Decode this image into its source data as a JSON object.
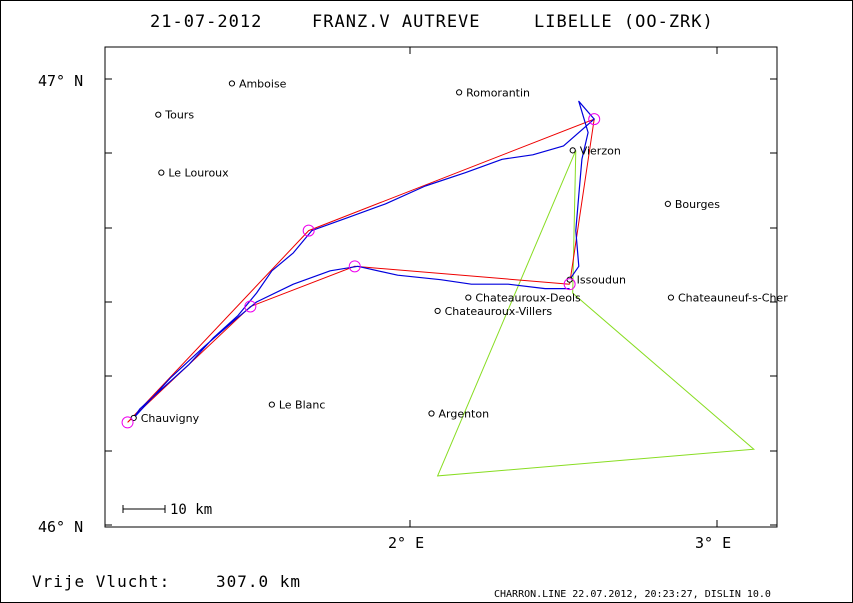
{
  "header": {
    "date": "21-07-2012",
    "pilot": "FRANZ.V AUTREVE",
    "aircraft": "LIBELLE (OO-ZRK)"
  },
  "axes": {
    "lat_top": "47° N",
    "lat_bottom": "46° N",
    "lon_1": "2° E",
    "lon_2": "3° E"
  },
  "scale_bar": {
    "label": "10 km"
  },
  "towns": [
    {
      "name": "Amboise",
      "lon": 1.42,
      "lat": 46.99
    },
    {
      "name": "Romorantin",
      "lon": 2.16,
      "lat": 46.97
    },
    {
      "name": "Tours",
      "lon": 1.18,
      "lat": 46.92
    },
    {
      "name": "Vierzon",
      "lon": 2.53,
      "lat": 46.84
    },
    {
      "name": "Le Louroux",
      "lon": 1.19,
      "lat": 46.79
    },
    {
      "name": "Bourges",
      "lon": 2.84,
      "lat": 46.72
    },
    {
      "name": "Issoudun",
      "lon": 2.52,
      "lat": 46.55
    },
    {
      "name": "Chateauroux-Deols",
      "lon": 2.19,
      "lat": 46.51
    },
    {
      "name": "Chateauneuf-s-Cher",
      "lon": 2.85,
      "lat": 46.51
    },
    {
      "name": "Chateauroux-Villers",
      "lon": 2.09,
      "lat": 46.48
    },
    {
      "name": "Le Blanc",
      "lon": 1.55,
      "lat": 46.27
    },
    {
      "name": "Argenton",
      "lon": 2.07,
      "lat": 46.25
    },
    {
      "name": "Chauvigny",
      "lon": 1.1,
      "lat": 46.24
    }
  ],
  "turnpoints": [
    {
      "lon": 2.6,
      "lat": 46.91
    },
    {
      "lon": 1.67,
      "lat": 46.66
    },
    {
      "lon": 1.82,
      "lat": 46.58
    },
    {
      "lon": 1.48,
      "lat": 46.49
    },
    {
      "lon": 1.08,
      "lat": 46.23
    },
    {
      "lon": 2.52,
      "lat": 46.54
    }
  ],
  "task_route": [
    {
      "lon": 2.52,
      "lat": 46.54
    },
    {
      "lon": 1.82,
      "lat": 46.58
    },
    {
      "lon": 1.48,
      "lat": 46.49
    },
    {
      "lon": 1.08,
      "lat": 46.23
    },
    {
      "lon": 1.67,
      "lat": 46.66
    },
    {
      "lon": 2.6,
      "lat": 46.91
    },
    {
      "lon": 2.52,
      "lat": 46.54
    }
  ],
  "fai_triangle": [
    {
      "lon": 2.54,
      "lat": 46.84
    },
    {
      "lon": 2.53,
      "lat": 46.52
    },
    {
      "lon": 3.12,
      "lat": 46.17
    },
    {
      "lon": 2.09,
      "lat": 46.11
    },
    {
      "lon": 2.54,
      "lat": 46.84
    }
  ],
  "flight_track": [
    {
      "lon": 2.52,
      "lat": 46.55
    },
    {
      "lon": 2.55,
      "lat": 46.58
    },
    {
      "lon": 2.54,
      "lat": 46.66
    },
    {
      "lon": 2.55,
      "lat": 46.74
    },
    {
      "lon": 2.56,
      "lat": 46.82
    },
    {
      "lon": 2.58,
      "lat": 46.88
    },
    {
      "lon": 2.55,
      "lat": 46.95
    },
    {
      "lon": 2.6,
      "lat": 46.91
    },
    {
      "lon": 2.5,
      "lat": 46.85
    },
    {
      "lon": 2.4,
      "lat": 46.83
    },
    {
      "lon": 2.3,
      "lat": 46.82
    },
    {
      "lon": 2.18,
      "lat": 46.79
    },
    {
      "lon": 2.05,
      "lat": 46.76
    },
    {
      "lon": 1.92,
      "lat": 46.72
    },
    {
      "lon": 1.8,
      "lat": 46.69
    },
    {
      "lon": 1.68,
      "lat": 46.66
    },
    {
      "lon": 1.62,
      "lat": 46.61
    },
    {
      "lon": 1.55,
      "lat": 46.57
    },
    {
      "lon": 1.5,
      "lat": 46.52
    },
    {
      "lon": 1.44,
      "lat": 46.47
    },
    {
      "lon": 1.36,
      "lat": 46.42
    },
    {
      "lon": 1.28,
      "lat": 46.36
    },
    {
      "lon": 1.2,
      "lat": 46.31
    },
    {
      "lon": 1.12,
      "lat": 46.26
    },
    {
      "lon": 1.1,
      "lat": 46.24
    },
    {
      "lon": 1.22,
      "lat": 46.33
    },
    {
      "lon": 1.33,
      "lat": 46.4
    },
    {
      "lon": 1.43,
      "lat": 46.46
    },
    {
      "lon": 1.5,
      "lat": 46.5
    },
    {
      "lon": 1.62,
      "lat": 46.54
    },
    {
      "lon": 1.74,
      "lat": 46.57
    },
    {
      "lon": 1.83,
      "lat": 46.58
    },
    {
      "lon": 1.96,
      "lat": 46.56
    },
    {
      "lon": 2.1,
      "lat": 46.55
    },
    {
      "lon": 2.2,
      "lat": 46.54
    },
    {
      "lon": 2.32,
      "lat": 46.54
    },
    {
      "lon": 2.44,
      "lat": 46.53
    },
    {
      "lon": 2.52,
      "lat": 46.53
    }
  ],
  "footer": {
    "distance_label": "Vrije Vlucht:",
    "distance_value": "307.0 km",
    "credit": "CHARRON.LINE 22.07.2012, 20:23:27, DISLIN 10.0"
  },
  "colors": {
    "track": "#0000dd",
    "route": "#ee0000",
    "triangle": "#88dd22",
    "turnpoint": "#ee00ee",
    "frame": "#000000"
  }
}
